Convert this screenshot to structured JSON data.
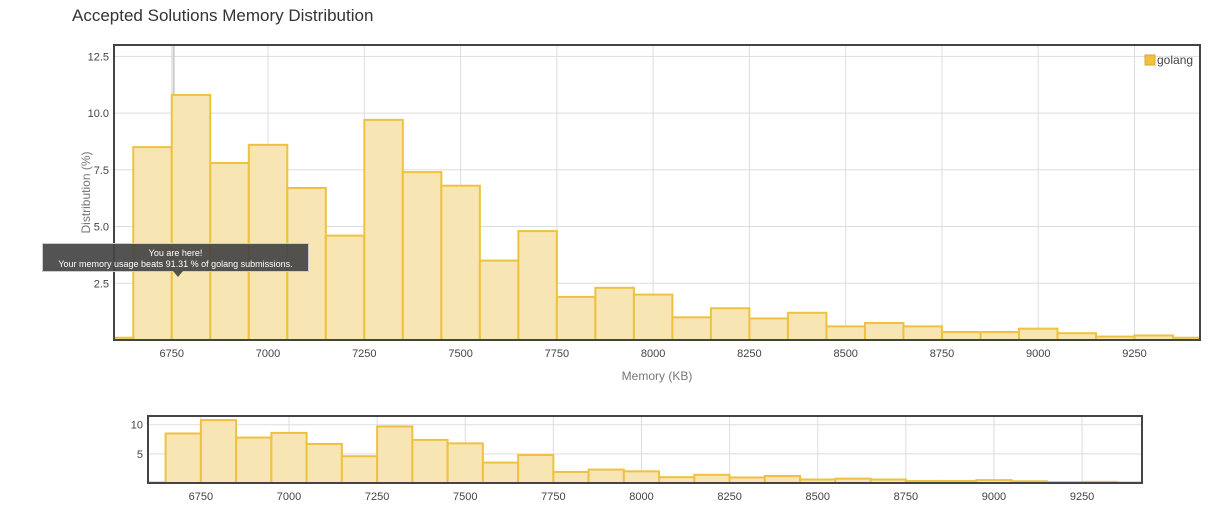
{
  "page": {
    "title": "Accepted Solutions Memory Distribution"
  },
  "tooltip": {
    "line1": "You are here!",
    "line2": "Your memory usage beats 91.31 % of golang submissions."
  },
  "colors": {
    "bar_fill": "#f8e5b4",
    "bar_stroke": "#eec240",
    "grid": "#dddddd",
    "frame": "#444444"
  },
  "chart_data": [
    {
      "type": "bar",
      "title": "Accepted Solutions Memory Distribution",
      "xlabel": "Memory (KB)",
      "ylabel": "Distribution (%)",
      "xlim": [
        6600,
        9420
      ],
      "ylim": [
        0,
        13
      ],
      "xticks": [
        6750,
        7000,
        7250,
        7500,
        7750,
        8000,
        8250,
        8500,
        8750,
        9000,
        9250
      ],
      "yticks": [
        2.5,
        5.0,
        7.5,
        10.0,
        12.5
      ],
      "ytick_labels": [
        "2.5",
        "5.0",
        "7.5",
        "10.0",
        "12.5"
      ],
      "legend": {
        "position": "top-right",
        "entries": [
          "golang"
        ]
      },
      "grid": true,
      "marker": {
        "x": 6755,
        "label": "You are here!"
      },
      "series": [
        {
          "name": "golang",
          "bin_width": 100,
          "bin_starts": [
            6600,
            6650,
            6750,
            6850,
            6950,
            7050,
            7150,
            7250,
            7350,
            7450,
            7550,
            7650,
            7750,
            7850,
            7950,
            8050,
            8150,
            8250,
            8350,
            8450,
            8550,
            8650,
            8750,
            8850,
            8950,
            9050,
            9150,
            9250,
            9350
          ],
          "values": [
            0.1,
            8.5,
            10.8,
            7.8,
            8.6,
            6.7,
            4.6,
            9.7,
            7.4,
            6.8,
            3.5,
            4.8,
            1.9,
            2.3,
            2.0,
            1.0,
            1.4,
            0.95,
            1.2,
            0.6,
            0.75,
            0.6,
            0.35,
            0.35,
            0.5,
            0.3,
            0.15,
            0.2,
            0.1
          ]
        }
      ]
    },
    {
      "type": "bar",
      "title": "",
      "xlim": [
        6600,
        9420
      ],
      "ylim": [
        0,
        11.5
      ],
      "xticks": [
        6750,
        7000,
        7250,
        7500,
        7750,
        8000,
        8250,
        8500,
        8750,
        9000,
        9250
      ],
      "yticks": [
        5,
        10
      ],
      "ytick_labels": [
        "5",
        "10"
      ],
      "grid": true,
      "series": [
        {
          "name": "",
          "bin_width": 100,
          "bin_starts": [
            6600,
            6650,
            6750,
            6850,
            6950,
            7050,
            7150,
            7250,
            7350,
            7450,
            7550,
            7650,
            7750,
            7850,
            7950,
            8050,
            8150,
            8250,
            8350,
            8450,
            8550,
            8650,
            8750,
            8850,
            8950,
            9050,
            9150,
            9250,
            9350
          ],
          "values": [
            0.1,
            8.5,
            10.8,
            7.8,
            8.6,
            6.7,
            4.6,
            9.7,
            7.4,
            6.8,
            3.5,
            4.8,
            1.9,
            2.3,
            2.0,
            1.0,
            1.4,
            0.95,
            1.2,
            0.6,
            0.75,
            0.6,
            0.35,
            0.35,
            0.5,
            0.3,
            0.15,
            0.2,
            0.1
          ]
        }
      ]
    }
  ]
}
